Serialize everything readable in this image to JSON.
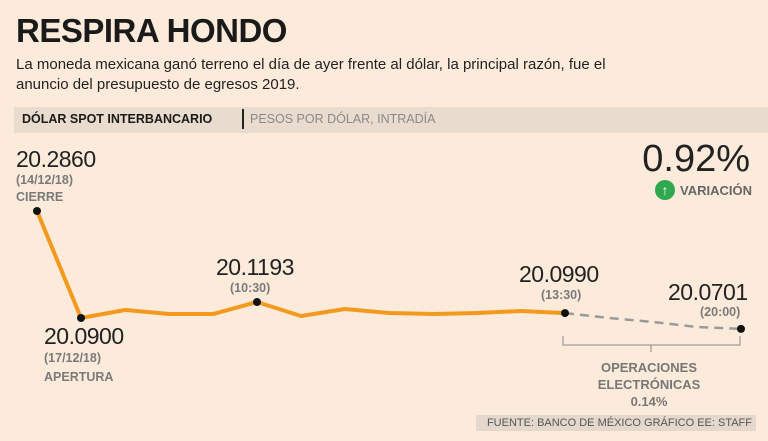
{
  "title": "RESPIRA HONDO",
  "subtitle": "La moneda mexicana ganó terreno el día de ayer frente al dólar, la principal razón, fue el anuncio del presupuesto de egresos 2019.",
  "header_bar": {
    "main": "DÓLAR SPOT INTERBANCARIO",
    "unit": "PESOS POR DÓLAR, INTRADÍA"
  },
  "variation": {
    "value": "0.92%",
    "label": "VARIACIÓN",
    "icon": "arrow-up-circle-icon",
    "icon_color": "#2fa84f"
  },
  "annotations": {
    "cierre": {
      "value": "20.2860",
      "date": "(14/12/18)",
      "label": "CIERRE"
    },
    "apertura": {
      "value": "20.0900",
      "date": "(17/12/18)",
      "label": "APERTURA"
    },
    "p1030": {
      "value": "20.1193",
      "time": "(10:30)"
    },
    "p1330": {
      "value": "20.0990",
      "time": "(13:30)"
    },
    "p2000": {
      "value": "20.0701",
      "time": "(20:00)"
    }
  },
  "electronic_ops": {
    "line1": "OPERACIONES",
    "line2": "ELECTRÓNICAS",
    "value": "0.14%"
  },
  "source": "FUENTE: BANCO DE MÉXICO GRÁFICO EE: STAFF",
  "chart_data": {
    "type": "line",
    "series": [
      {
        "style": "solid",
        "color": "#f39a1e",
        "values": [
          20.286,
          20.09,
          20.1047,
          20.0973,
          20.0973,
          20.1193,
          20.0937,
          20.1065,
          20.0992,
          20.0973,
          20.0992,
          20.1028,
          20.099
        ]
      },
      {
        "style": "dashed",
        "color": "#9a9a9a",
        "values": [
          20.099,
          20.09,
          20.0827,
          20.0735,
          20.0701
        ]
      }
    ],
    "marked_points": [
      0,
      1,
      5,
      12,
      16
    ],
    "ylim": [
      20.06,
      20.3
    ],
    "grid": false
  }
}
